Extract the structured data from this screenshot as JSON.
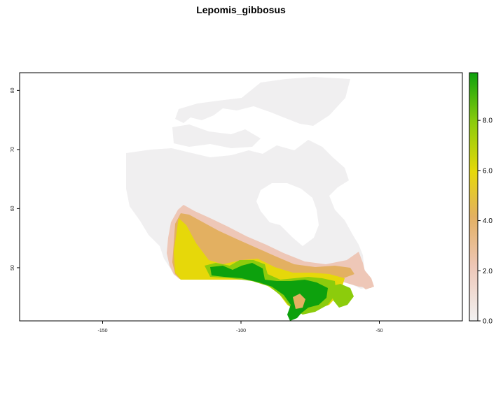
{
  "title": "Lepomis_gibbosus",
  "map": {
    "x_axis": {
      "range": [
        -180,
        -20
      ],
      "ticks": [
        -150,
        -100,
        -50
      ],
      "tick_labels": [
        "-150",
        "-100",
        "-50"
      ]
    },
    "y_axis": {
      "range": [
        41,
        83
      ],
      "ticks": [
        50,
        60,
        70,
        80
      ],
      "tick_labels": [
        "50",
        "60",
        "70",
        "80"
      ]
    },
    "land_color": "#f0eff0"
  },
  "legend": {
    "range": [
      0,
      9.9
    ],
    "ticks": [
      0,
      2,
      4,
      6,
      8
    ],
    "tick_labels": [
      "0.0",
      "2.0",
      "4.0",
      "6.0",
      "8.0"
    ],
    "colors": [
      "#f2f2f2",
      "#eec7b7",
      "#e3b061",
      "#e6d80a",
      "#8ccc0c",
      "#0da10d"
    ]
  }
}
